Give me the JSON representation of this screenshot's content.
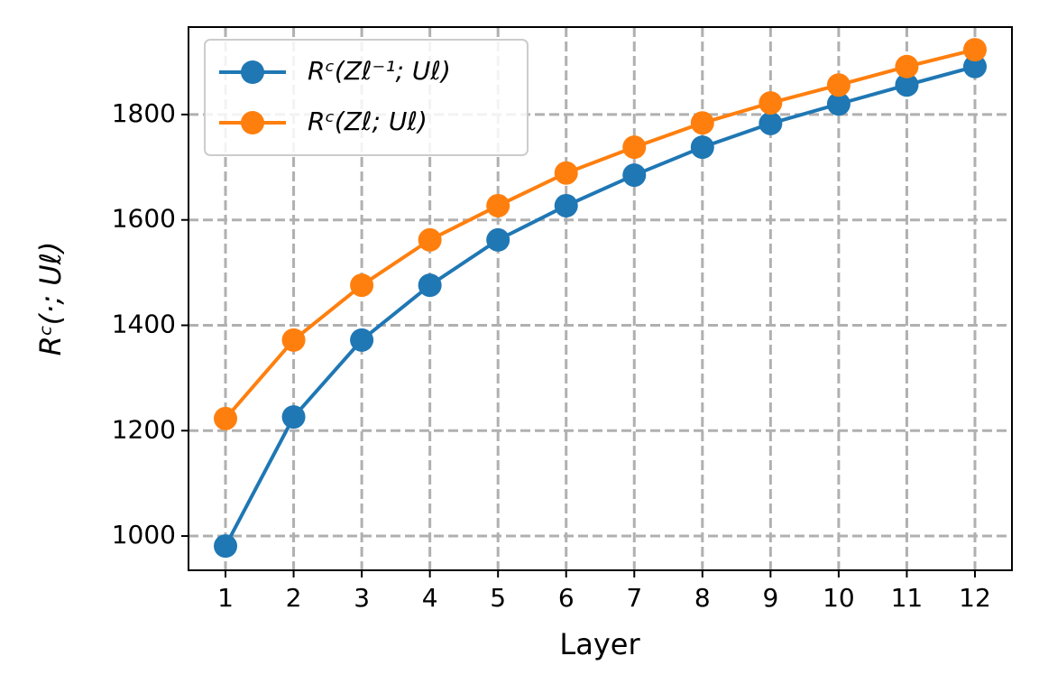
{
  "chart_data": {
    "type": "line",
    "x_label": "Layer",
    "y_label": "Rᶜ(·; Uℓ)",
    "x": [
      1,
      2,
      3,
      4,
      5,
      6,
      7,
      8,
      9,
      10,
      11,
      12
    ],
    "series": [
      {
        "name": "Rᶜ(Zℓ⁻¹; Uℓ)",
        "color": "#1f77b4",
        "values": [
          981,
          1226,
          1372,
          1476,
          1562,
          1627,
          1685,
          1738,
          1783,
          1820,
          1856,
          1891
        ]
      },
      {
        "name": "Rᶜ(Zℓ; Uℓ)",
        "color": "#ff7f0e",
        "values": [
          1223,
          1372,
          1476,
          1562,
          1627,
          1689,
          1738,
          1784,
          1822,
          1856,
          1891,
          1923
        ]
      }
    ],
    "xlim": [
      0.457,
      12.543
    ],
    "ylim": [
      935,
      1966
    ],
    "xticks": [
      1,
      2,
      3,
      4,
      5,
      6,
      7,
      8,
      9,
      10,
      11,
      12
    ],
    "yticks": [
      1000,
      1200,
      1400,
      1600,
      1800
    ],
    "grid": true,
    "legend": "upper-left"
  }
}
